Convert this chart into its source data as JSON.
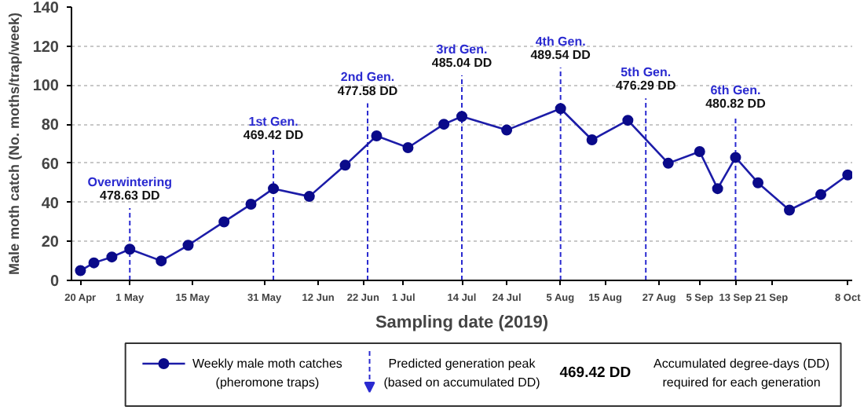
{
  "chart_data": {
    "type": "line",
    "xlabel": "Sampling date (2019)",
    "ylabel": "Male moth catch (No. moths/trap/week)",
    "x": [
      "2019-04-20",
      "2019-04-23",
      "2019-04-27",
      "2019-05-01",
      "2019-05-08",
      "2019-05-14",
      "2019-05-22",
      "2019-05-28",
      "2019-06-02",
      "2019-06-10",
      "2019-06-18",
      "2019-06-25",
      "2019-07-02",
      "2019-07-10",
      "2019-07-14",
      "2019-07-24",
      "2019-08-05",
      "2019-08-12",
      "2019-08-20",
      "2019-08-29",
      "2019-09-05",
      "2019-09-09",
      "2019-09-13",
      "2019-09-18",
      "2019-09-25",
      "2019-10-02",
      "2019-10-08"
    ],
    "series": [
      {
        "name": "Weekly male moth catches\n(pheromone traps)",
        "color": "#1c1ca8",
        "values": [
          5,
          9,
          12,
          16,
          10,
          18,
          30,
          39,
          47,
          43,
          59,
          74,
          68,
          80,
          84,
          77,
          88,
          72,
          82,
          60,
          66,
          47,
          63,
          50,
          36,
          44,
          54
        ]
      }
    ],
    "marker": "circle",
    "line_style": "solid",
    "xlim": [
      "2019-04-18",
      "2019-10-09"
    ],
    "xticks": [
      {
        "value": "2019-04-20",
        "label": "20 Apr"
      },
      {
        "value": "2019-05-01",
        "label": "1 May"
      },
      {
        "value": "2019-05-15",
        "label": "15 May"
      },
      {
        "value": "2019-05-31",
        "label": "31 May"
      },
      {
        "value": "2019-06-12",
        "label": "12 Jun"
      },
      {
        "value": "2019-06-22",
        "label": "22 Jun"
      },
      {
        "value": "2019-07-01",
        "label": "1 Jul"
      },
      {
        "value": "2019-07-14",
        "label": "14 Jul"
      },
      {
        "value": "2019-07-24",
        "label": "24 Jul"
      },
      {
        "value": "2019-08-05",
        "label": "5 Aug"
      },
      {
        "value": "2019-08-15",
        "label": "15 Aug"
      },
      {
        "value": "2019-08-27",
        "label": "27 Aug"
      },
      {
        "value": "2019-09-05",
        "label": "5 Sep"
      },
      {
        "value": "2019-09-13",
        "label": "13 Sep"
      },
      {
        "value": "2019-09-21",
        "label": "21 Sep"
      },
      {
        "value": "2019-10-08",
        "label": "8 Oct"
      }
    ],
    "ylim": [
      0,
      140
    ],
    "yticks": [
      0,
      20,
      40,
      60,
      80,
      100,
      120,
      140
    ],
    "grid": "y",
    "legend": "bottom",
    "ref_lines": [
      {
        "axis": "x",
        "value": "2019-05-01",
        "label": "Overwintering\n478.63 DD",
        "color": "#2a2ad0",
        "line_style": "dashed"
      },
      {
        "axis": "x",
        "value": "2019-06-02",
        "label": "1st Gen.\n469.42 DD",
        "color": "#2a2ad0",
        "line_style": "dashed"
      },
      {
        "axis": "x",
        "value": "2019-06-23",
        "label": "2nd Gen.\n477.58 DD",
        "color": "#2a2ad0",
        "line_style": "dashed"
      },
      {
        "axis": "x",
        "value": "2019-07-14",
        "label": "3rd Gen.\n485.04 DD",
        "color": "#2a2ad0",
        "line_style": "dashed"
      },
      {
        "axis": "x",
        "value": "2019-08-05",
        "label": "4th Gen.\n489.54 DD",
        "color": "#2a2ad0",
        "line_style": "dashed"
      },
      {
        "axis": "x",
        "value": "2019-08-24",
        "label": "5th Gen.\n476.29 DD",
        "color": "#2a2ad0",
        "line_style": "dashed"
      },
      {
        "axis": "x",
        "value": "2019-09-13",
        "label": "6th Gen.\n480.82 DD",
        "color": "#2a2ad0",
        "line_style": "dashed"
      }
    ],
    "annotations": [
      "Predicted generation peak\n(based on accumulated DD)",
      "469.42 DD",
      "Accumulated degree-days (DD)\nrequired for each generation"
    ]
  }
}
